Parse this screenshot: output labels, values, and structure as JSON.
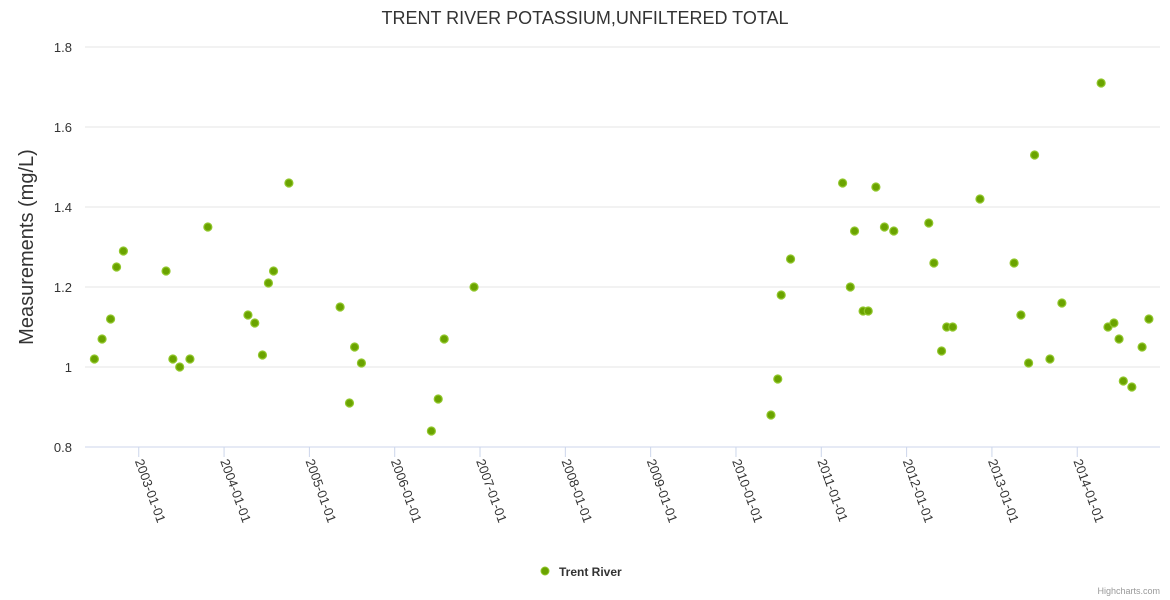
{
  "chart_data": {
    "type": "scatter",
    "title": "TRENT RIVER POTASSIUM,UNFILTERED TOTAL",
    "xlabel": "",
    "ylabel": "Measurements (mg/L)",
    "ylim": [
      0.8,
      1.8
    ],
    "yticks": [
      0.8,
      1,
      1.2,
      1.4,
      1.6,
      1.8
    ],
    "ytick_labels": [
      "0.8",
      "1",
      "1.2",
      "1.4",
      "1.6",
      "1.8"
    ],
    "xlim": [
      2002.37,
      2014.97
    ],
    "xticks": [
      2003,
      2004,
      2005,
      2006,
      2007,
      2008,
      2009,
      2010,
      2011,
      2012,
      2013,
      2014
    ],
    "xtick_labels": [
      "2003-01-01",
      "2004-01-01",
      "2005-01-01",
      "2006-01-01",
      "2007-01-01",
      "2008-01-01",
      "2009-01-01",
      "2010-01-01",
      "2011-01-01",
      "2012-01-01",
      "2013-01-01",
      "2014-01-01"
    ],
    "grid": true,
    "legend_position": "bottom-center",
    "series": [
      {
        "name": "Trent River",
        "color": "#6aa300",
        "x": [
          2002.48,
          2002.57,
          2002.67,
          2002.74,
          2002.82,
          2003.32,
          2003.4,
          2003.48,
          2003.6,
          2003.81,
          2004.28,
          2004.36,
          2004.45,
          2004.52,
          2004.58,
          2004.76,
          2005.36,
          2005.47,
          2005.53,
          2005.61,
          2006.43,
          2006.51,
          2006.58,
          2006.93,
          2010.41,
          2010.49,
          2010.53,
          2010.64,
          2011.25,
          2011.34,
          2011.39,
          2011.49,
          2011.55,
          2011.64,
          2011.74,
          2011.85,
          2012.26,
          2012.32,
          2012.41,
          2012.47,
          2012.54,
          2012.86,
          2013.26,
          2013.34,
          2013.43,
          2013.5,
          2013.68,
          2013.82,
          2014.28,
          2014.36,
          2014.43,
          2014.49,
          2014.54,
          2014.64,
          2014.76,
          2014.84
        ],
        "y": [
          1.02,
          1.07,
          1.12,
          1.25,
          1.29,
          1.24,
          1.02,
          1.0,
          1.02,
          1.35,
          1.13,
          1.11,
          1.03,
          1.21,
          1.24,
          1.46,
          1.15,
          0.91,
          1.05,
          1.01,
          0.84,
          0.92,
          1.07,
          1.2,
          0.88,
          0.97,
          1.18,
          1.27,
          1.46,
          1.2,
          1.34,
          1.14,
          1.14,
          1.45,
          1.35,
          1.34,
          1.36,
          1.26,
          1.04,
          1.1,
          1.1,
          1.42,
          1.26,
          1.13,
          1.01,
          1.53,
          1.02,
          1.16,
          1.71,
          1.1,
          1.11,
          1.07,
          0.965,
          0.95,
          1.05,
          1.12
        ]
      }
    ]
  },
  "credits": "Highcharts.com"
}
